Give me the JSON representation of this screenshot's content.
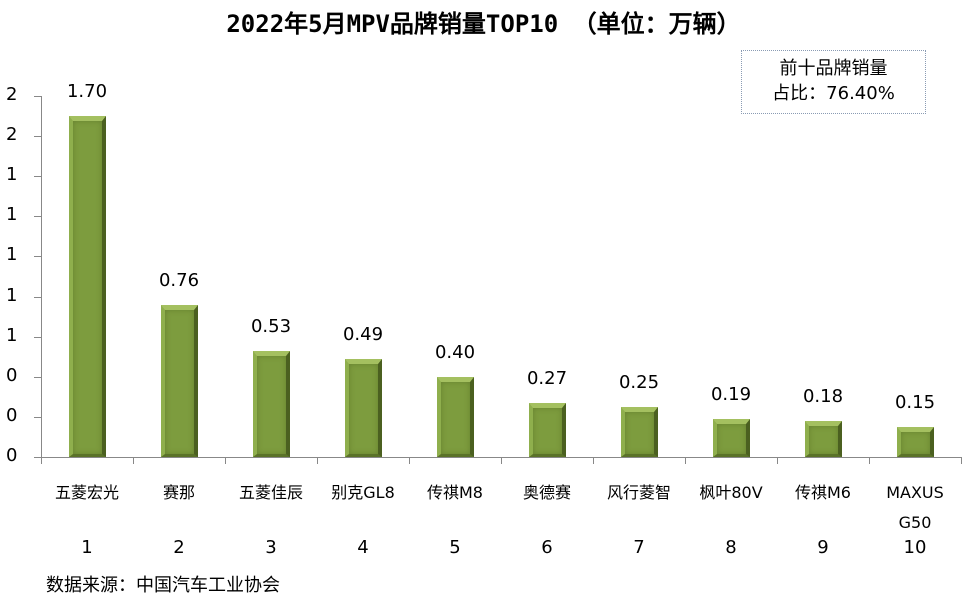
{
  "title": "2022年5月MPV品牌销量TOP10 （单位：万辆）",
  "share_box": {
    "line1": "前十品牌销量",
    "line2": "占比：76.40%"
  },
  "source": "数据来源：中国汽车工业协会",
  "colors": {
    "bar": "#7d9c3e",
    "axis": "#888888"
  },
  "y_axis": {
    "tick_labels": [
      "0",
      "0",
      "0",
      "1",
      "1",
      "1",
      "1",
      "1",
      "2",
      "2"
    ]
  },
  "ranks": [
    "1",
    "2",
    "3",
    "4",
    "5",
    "6",
    "7",
    "8",
    "9",
    "10"
  ],
  "chart_data": {
    "type": "bar",
    "title": "2022年5月MPV品牌销量TOP10 （单位：万辆）",
    "categories": [
      "五菱宏光",
      "赛那",
      "五菱佳辰",
      "别克GL8",
      "传祺M8",
      "奥德赛",
      "风行菱智",
      "枫叶80V",
      "传祺M6",
      "MAXUS G50"
    ],
    "values": [
      1.7,
      0.76,
      0.53,
      0.49,
      0.4,
      0.27,
      0.25,
      0.19,
      0.18,
      0.15
    ],
    "value_labels": [
      "1.70",
      "0.76",
      "0.53",
      "0.49",
      "0.40",
      "0.27",
      "0.25",
      "0.19",
      "0.18",
      "0.15"
    ],
    "xlabel": "",
    "ylabel": "",
    "ylim": [
      0,
      1.8
    ],
    "y_ticks": [
      0,
      0.2,
      0.4,
      0.6,
      0.8,
      1.0,
      1.2,
      1.4,
      1.6,
      1.8
    ],
    "y_tick_labels": [
      "0",
      "0",
      "0",
      "1",
      "1",
      "1",
      "1",
      "1",
      "2",
      "2"
    ],
    "grid": false,
    "legend": null,
    "annotations": [
      "前十品牌销量占比：76.40%",
      "数据来源：中国汽车工业协会"
    ]
  }
}
